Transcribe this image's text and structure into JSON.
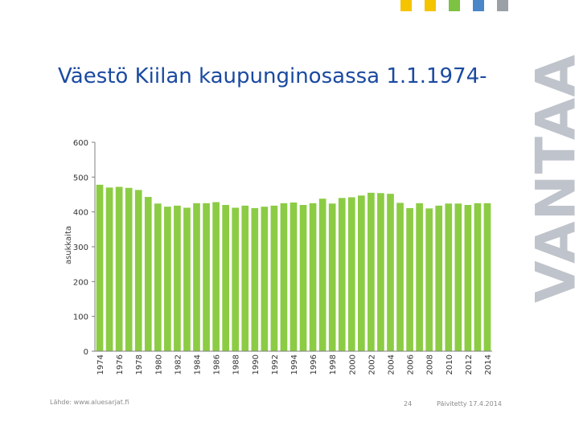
{
  "slide": {
    "title": "Väestö Kiilan kaupunginosassa 1.1.1974-",
    "brand": "VANTAA",
    "logo_colors": [
      "#f5c400",
      "#f5c400",
      "#7dc242",
      "#4a86c8",
      "#9aa0a6"
    ],
    "footer": {
      "source": "Lähde: www.aluesarjat.fi",
      "page": "24",
      "updated": "Päivitetty 17.4.2014"
    }
  },
  "chart_data": {
    "type": "bar",
    "title": "",
    "xlabel": "",
    "ylabel": "asukkaita",
    "ylim": [
      0,
      600
    ],
    "yticks": [
      0,
      100,
      200,
      300,
      400,
      500,
      600
    ],
    "bar_color": "#8ccc44",
    "grid": false,
    "categories": [
      "1974",
      "1975",
      "1976",
      "1977",
      "1978",
      "1979",
      "1980",
      "1981",
      "1982",
      "1983",
      "1984",
      "1985",
      "1986",
      "1987",
      "1988",
      "1989",
      "1990",
      "1991",
      "1992",
      "1993",
      "1994",
      "1995",
      "1996",
      "1997",
      "1998",
      "1999",
      "2000",
      "2001",
      "2002",
      "2003",
      "2004",
      "2005",
      "2006",
      "2007",
      "2008",
      "2009",
      "2010",
      "2011",
      "2012",
      "2013",
      "2014"
    ],
    "xtick_labels": [
      "1974",
      "",
      "1976",
      "",
      "1978",
      "",
      "1980",
      "",
      "1982",
      "",
      "1984",
      "",
      "1986",
      "",
      "1988",
      "",
      "1990",
      "",
      "1992",
      "",
      "1994",
      "",
      "1996",
      "",
      "1998",
      "",
      "2000",
      "",
      "2002",
      "",
      "2004",
      "",
      "2006",
      "",
      "2008",
      "",
      "2010",
      "",
      "2012",
      "",
      "2014"
    ],
    "values": [
      478,
      470,
      472,
      469,
      463,
      443,
      424,
      415,
      418,
      412,
      425,
      425,
      428,
      420,
      412,
      418,
      411,
      415,
      418,
      425,
      427,
      420,
      425,
      438,
      424,
      440,
      442,
      447,
      455,
      454,
      452,
      426,
      411,
      425,
      410,
      418,
      424,
      424,
      420,
      425,
      425
    ]
  }
}
